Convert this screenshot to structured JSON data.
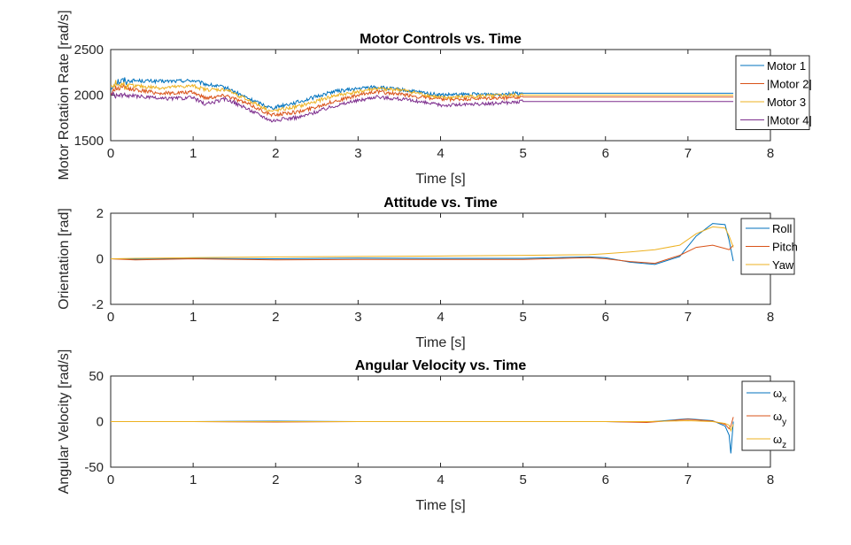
{
  "chart_data": [
    {
      "type": "line",
      "title": "Motor Controls vs. Time",
      "xlabel": "Time [s]",
      "ylabel": "Motor Rotation Rate [rad/s]",
      "xlim": [
        0,
        8
      ],
      "ylim": [
        1500,
        2500
      ],
      "xticks": [
        "0",
        "1",
        "2",
        "3",
        "4",
        "5",
        "6",
        "7",
        "8"
      ],
      "yticks": [
        "1500",
        "2000",
        "2500"
      ],
      "legend_position": "top-right",
      "noise_amplitude": 20,
      "series": [
        {
          "name": "Motor 1",
          "legend_label": "Motor 1",
          "color": "#0072BD",
          "x": [
            0,
            0.05,
            0.3,
            0.6,
            1.0,
            1.15,
            1.4,
            1.7,
            1.95,
            2.3,
            2.7,
            3.2,
            3.5,
            4.0,
            4.5,
            5.0,
            7.55
          ],
          "y": [
            2050,
            2150,
            2160,
            2150,
            2160,
            2120,
            2080,
            1950,
            1860,
            1930,
            2040,
            2090,
            2060,
            2000,
            2010,
            2020,
            2020
          ]
        },
        {
          "name": "|Motor 2|",
          "legend_label": " |Motor 2|",
          "color": "#D95319",
          "x": [
            0,
            0.05,
            0.3,
            0.6,
            1.0,
            1.15,
            1.4,
            1.7,
            1.95,
            2.3,
            2.7,
            3.2,
            3.5,
            4.0,
            4.5,
            5.0,
            7.55
          ],
          "y": [
            2000,
            2080,
            2060,
            2020,
            2030,
            1970,
            2000,
            1890,
            1780,
            1820,
            1930,
            2040,
            2010,
            1950,
            1960,
            1980,
            1980
          ]
        },
        {
          "name": "Motor 3",
          "legend_label": "Motor 3",
          "color": "#EDB120",
          "x": [
            0,
            0.05,
            0.3,
            0.6,
            1.0,
            1.15,
            1.4,
            1.7,
            1.95,
            2.3,
            2.7,
            3.2,
            3.5,
            4.0,
            4.5,
            5.0,
            7.55
          ],
          "y": [
            2100,
            2120,
            2100,
            2080,
            2100,
            2060,
            2060,
            1930,
            1820,
            1880,
            1990,
            2070,
            2060,
            1970,
            1990,
            2000,
            2000
          ]
        },
        {
          "name": "|Motor 4|",
          "legend_label": "|Motor 4|",
          "color": "#7E2F8E",
          "x": [
            0,
            0.05,
            0.3,
            0.6,
            1.0,
            1.15,
            1.4,
            1.7,
            1.95,
            2.3,
            2.7,
            3.2,
            3.5,
            4.0,
            4.5,
            5.0,
            7.55
          ],
          "y": [
            2020,
            2000,
            1990,
            1960,
            1970,
            1900,
            1960,
            1830,
            1720,
            1760,
            1880,
            1980,
            1960,
            1890,
            1900,
            1930,
            1930
          ]
        }
      ]
    },
    {
      "type": "line",
      "title": "Attitude vs. Time",
      "xlabel": "Time [s]",
      "ylabel": "Orientation [rad]",
      "xlim": [
        0,
        8
      ],
      "ylim": [
        -2,
        2
      ],
      "xticks": [
        "0",
        "1",
        "2",
        "3",
        "4",
        "5",
        "6",
        "7",
        "8"
      ],
      "yticks": [
        "-2",
        "0",
        "2"
      ],
      "legend_position": "top-right",
      "series": [
        {
          "name": "Roll",
          "legend_label": "Roll",
          "color": "#0072BD",
          "x": [
            0,
            0.3,
            1,
            2,
            3,
            4,
            5,
            5.8,
            6.0,
            6.3,
            6.6,
            6.9,
            7.1,
            7.3,
            7.45,
            7.5,
            7.55
          ],
          "y": [
            0,
            -0.02,
            0.02,
            0,
            0.03,
            0.02,
            0.02,
            0.08,
            0.05,
            -0.15,
            -0.25,
            0.1,
            1.0,
            1.55,
            1.5,
            0.8,
            -0.1
          ]
        },
        {
          "name": "Pitch",
          "legend_label": "Pitch",
          "color": "#D95319",
          "x": [
            0,
            0.3,
            1,
            2,
            3,
            4,
            5,
            5.8,
            6.0,
            6.3,
            6.6,
            6.9,
            7.1,
            7.3,
            7.45,
            7.5,
            7.55
          ],
          "y": [
            0,
            -0.05,
            0,
            -0.05,
            -0.03,
            -0.03,
            -0.03,
            0.05,
            0.0,
            -0.12,
            -0.2,
            0.15,
            0.5,
            0.6,
            0.45,
            0.4,
            0.6
          ]
        },
        {
          "name": "Yaw",
          "legend_label": "Yaw",
          "color": "#EDB120",
          "x": [
            0,
            0.3,
            1,
            2,
            3,
            4,
            5,
            5.8,
            6.0,
            6.3,
            6.6,
            6.9,
            7.1,
            7.3,
            7.45,
            7.5,
            7.55
          ],
          "y": [
            0,
            0.02,
            0.05,
            0.08,
            0.1,
            0.12,
            0.15,
            0.18,
            0.22,
            0.3,
            0.4,
            0.6,
            1.1,
            1.4,
            1.35,
            1.0,
            0.5
          ]
        }
      ]
    },
    {
      "type": "line",
      "title": "Angular Velocity vs. Time",
      "xlabel": "Time [s]",
      "ylabel": "Angular Velocity [rad/s]",
      "xlim": [
        0,
        8
      ],
      "ylim": [
        -50,
        50
      ],
      "xticks": [
        "0",
        "1",
        "2",
        "3",
        "4",
        "5",
        "6",
        "7",
        "8"
      ],
      "yticks": [
        "-50",
        "0",
        "50"
      ],
      "legend_position": "top-right",
      "series": [
        {
          "name": "ωx",
          "legend_label": "ω",
          "legend_sub": "x",
          "color": "#0072BD",
          "x": [
            0,
            1,
            2,
            3,
            4,
            5,
            6,
            6.5,
            7.0,
            7.3,
            7.45,
            7.5,
            7.52,
            7.55
          ],
          "y": [
            0,
            0,
            0.5,
            0,
            0,
            0,
            0,
            -0.5,
            3,
            1,
            -5,
            -15,
            -35,
            0
          ]
        },
        {
          "name": "ωy",
          "legend_label": "ω",
          "legend_sub": "y",
          "color": "#D95319",
          "x": [
            0,
            1,
            2,
            3,
            4,
            5,
            6,
            6.5,
            7.0,
            7.3,
            7.45,
            7.5,
            7.52,
            7.55
          ],
          "y": [
            0,
            0,
            -0.5,
            0,
            0,
            0,
            0,
            -1,
            2.5,
            0.5,
            -3,
            -8,
            -5,
            5
          ]
        },
        {
          "name": "ωz",
          "legend_label": "ω",
          "legend_sub": "z",
          "color": "#EDB120",
          "x": [
            0,
            1,
            2,
            3,
            4,
            5,
            6,
            6.5,
            7.0,
            7.3,
            7.45,
            7.5,
            7.52,
            7.55
          ],
          "y": [
            0,
            0,
            0,
            0,
            0,
            0,
            0,
            0,
            1,
            0,
            -2,
            -4,
            -10,
            -3
          ]
        }
      ]
    }
  ]
}
